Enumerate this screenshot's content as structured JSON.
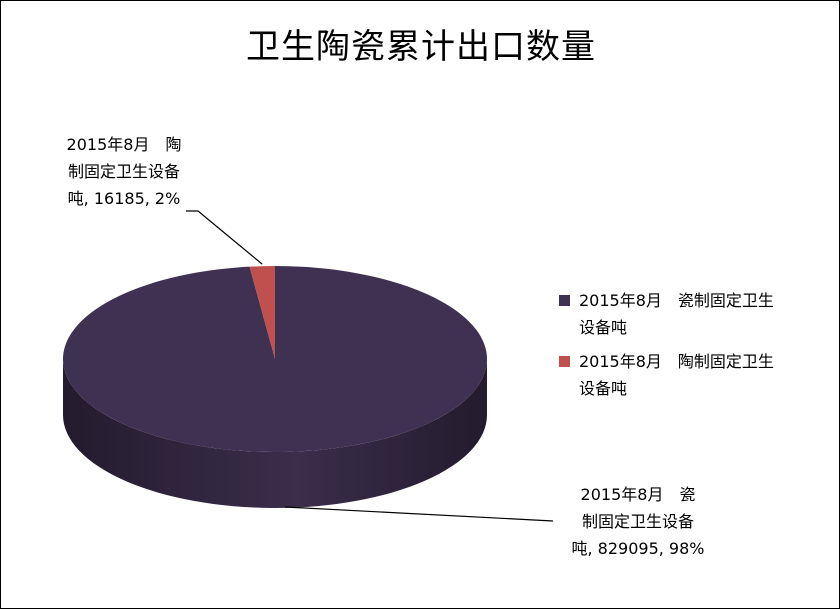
{
  "chart_data": {
    "type": "pie",
    "title": "卫生陶瓷累计出口数量",
    "slices": [
      {
        "name": "2015年8月　瓷制固定卫生设备吨",
        "legend_line1": "2015年8月　瓷制固定卫生",
        "legend_line2": "设备吨",
        "value": 829095,
        "percent": "98%",
        "label_line1": "2015年8月　瓷",
        "label_line2": "制固定卫生设备",
        "label_line3": "吨, 829095, 98%",
        "color": "#3F3151",
        "side_dark": "#241B2E",
        "side_light": "#4E4063"
      },
      {
        "name": "2015年8月　陶制固定卫生设备吨",
        "legend_line1": "2015年8月　陶制固定卫生",
        "legend_line2": "设备吨",
        "value": 16185,
        "percent": "2%",
        "label_line1": "2015年8月　陶",
        "label_line2": "制固定卫生设备",
        "label_line3": "吨, 16185, 2%",
        "color": "#C0504D",
        "side_dark": "#8C3836",
        "side_light": "#C0504D"
      }
    ],
    "pie_style": "3d",
    "legend_position": "right"
  }
}
